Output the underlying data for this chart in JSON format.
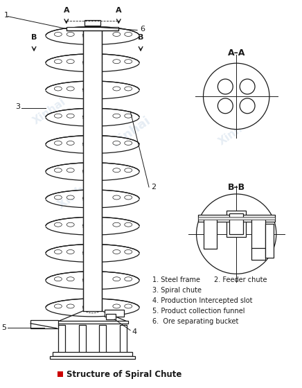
{
  "title": "Structure of Spiral Chute",
  "title_color": "#000000",
  "title_square_color": "#cc0000",
  "background_color": "#ffffff",
  "line_color": "#1a1a1a",
  "watermark_color": "#c8d8e8",
  "watermark_text": "Xinhai",
  "labels_line1": "1. Steel frame     2. Feeder chute",
  "labels_line2": "3. Spiral chute",
  "labels_line3": "4. Production Intercepted slot",
  "labels_line4": "5. Product collection funnel",
  "labels_line5": "6.  Ore separating bucket",
  "AA_label": "A–A",
  "BB_label": "B–B"
}
